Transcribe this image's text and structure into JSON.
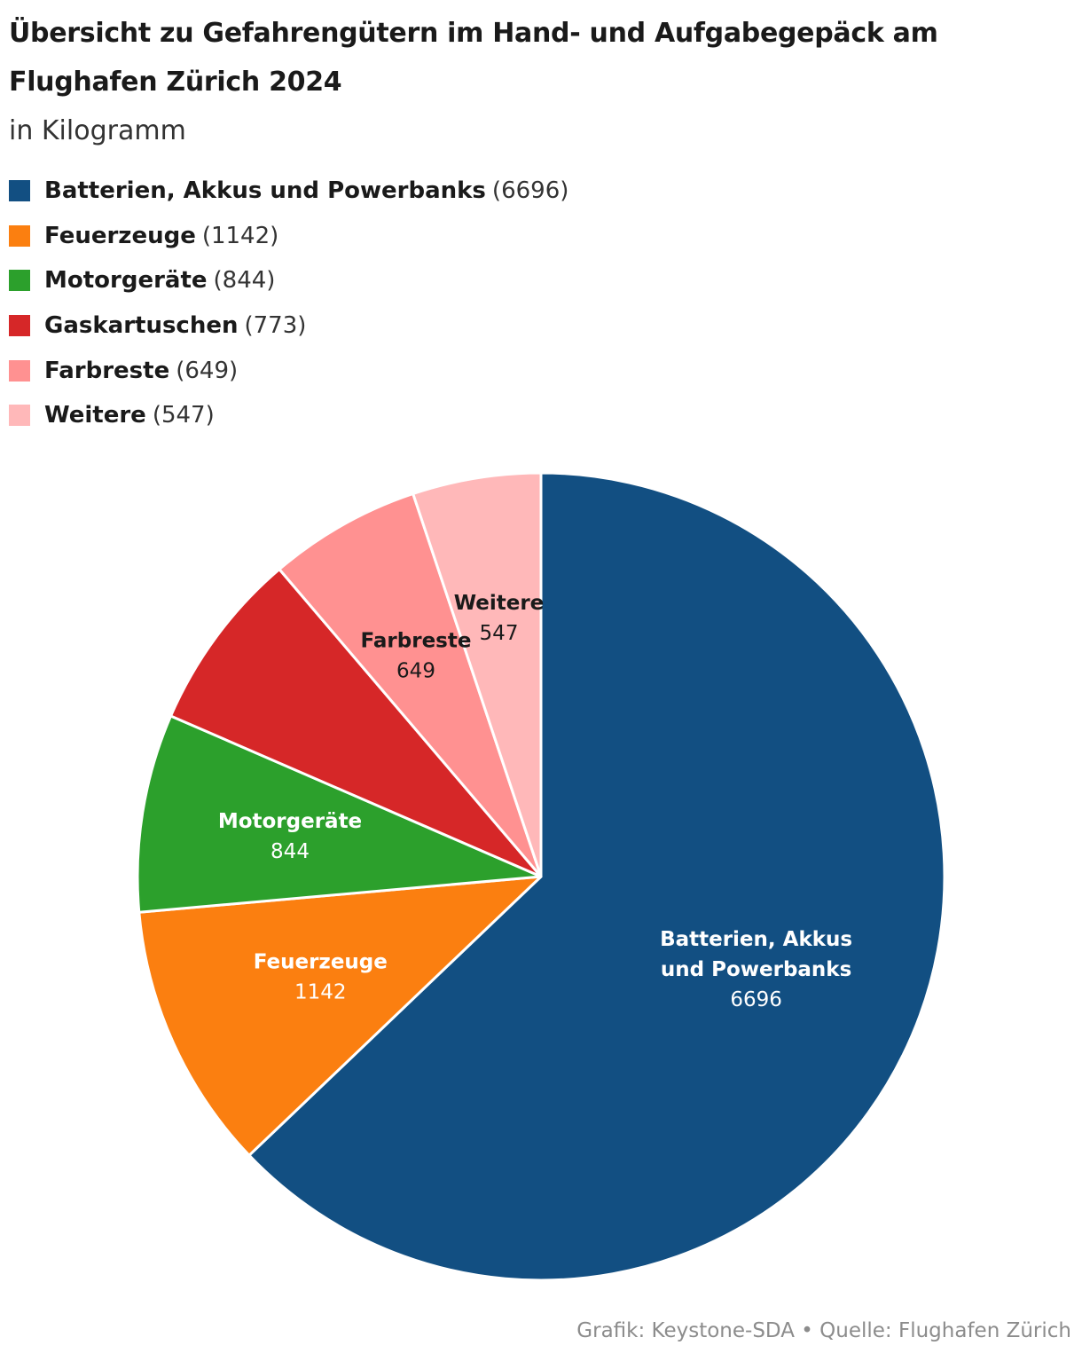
{
  "chart_data": {
    "type": "pie",
    "title": "Übersicht zu Gefahrengütern im Hand- und Aufgabegepäck am Flughafen Zürich 2024",
    "subtitle": "in Kilogramm",
    "legend_position": "top-left",
    "slices": [
      {
        "name": "Batterien, Akkus und Powerbanks",
        "label_lines": [
          "Batterien, Akkus",
          "und Powerbanks"
        ],
        "value": 6696,
        "legend_value": "(6696)",
        "value_label": "6696",
        "color": "#124f82",
        "text_color": "#ffffff"
      },
      {
        "name": "Feuerzeuge",
        "label_lines": [
          "Feuerzeuge"
        ],
        "value": 1142,
        "legend_value": "(1142)",
        "value_label": "1142",
        "color": "#fb7f10",
        "text_color": "#ffffff"
      },
      {
        "name": "Motorgeräte",
        "label_lines": [
          "Motorgeräte"
        ],
        "value": 844,
        "legend_value": "(844)",
        "value_label": "844",
        "color": "#2ca02c",
        "text_color": "#ffffff"
      },
      {
        "name": "Gaskartuschen",
        "label_lines": [],
        "value": 773,
        "legend_value": "(773)",
        "value_label": "",
        "color": "#d62728",
        "text_color": "#ffffff"
      },
      {
        "name": "Farbreste",
        "label_lines": [
          "Farbreste"
        ],
        "value": 649,
        "legend_value": "(649)",
        "value_label": "649",
        "color": "#ff9191",
        "text_color": "#1a1a1a"
      },
      {
        "name": "Weitere",
        "label_lines": [
          "Weitere"
        ],
        "value": 547,
        "legend_value": "(547)",
        "value_label": "547",
        "color": "#ffb8b9",
        "text_color": "#1a1a1a"
      }
    ],
    "footer": "Grafik: Keystone-SDA • Quelle: Flughafen Zürich"
  }
}
